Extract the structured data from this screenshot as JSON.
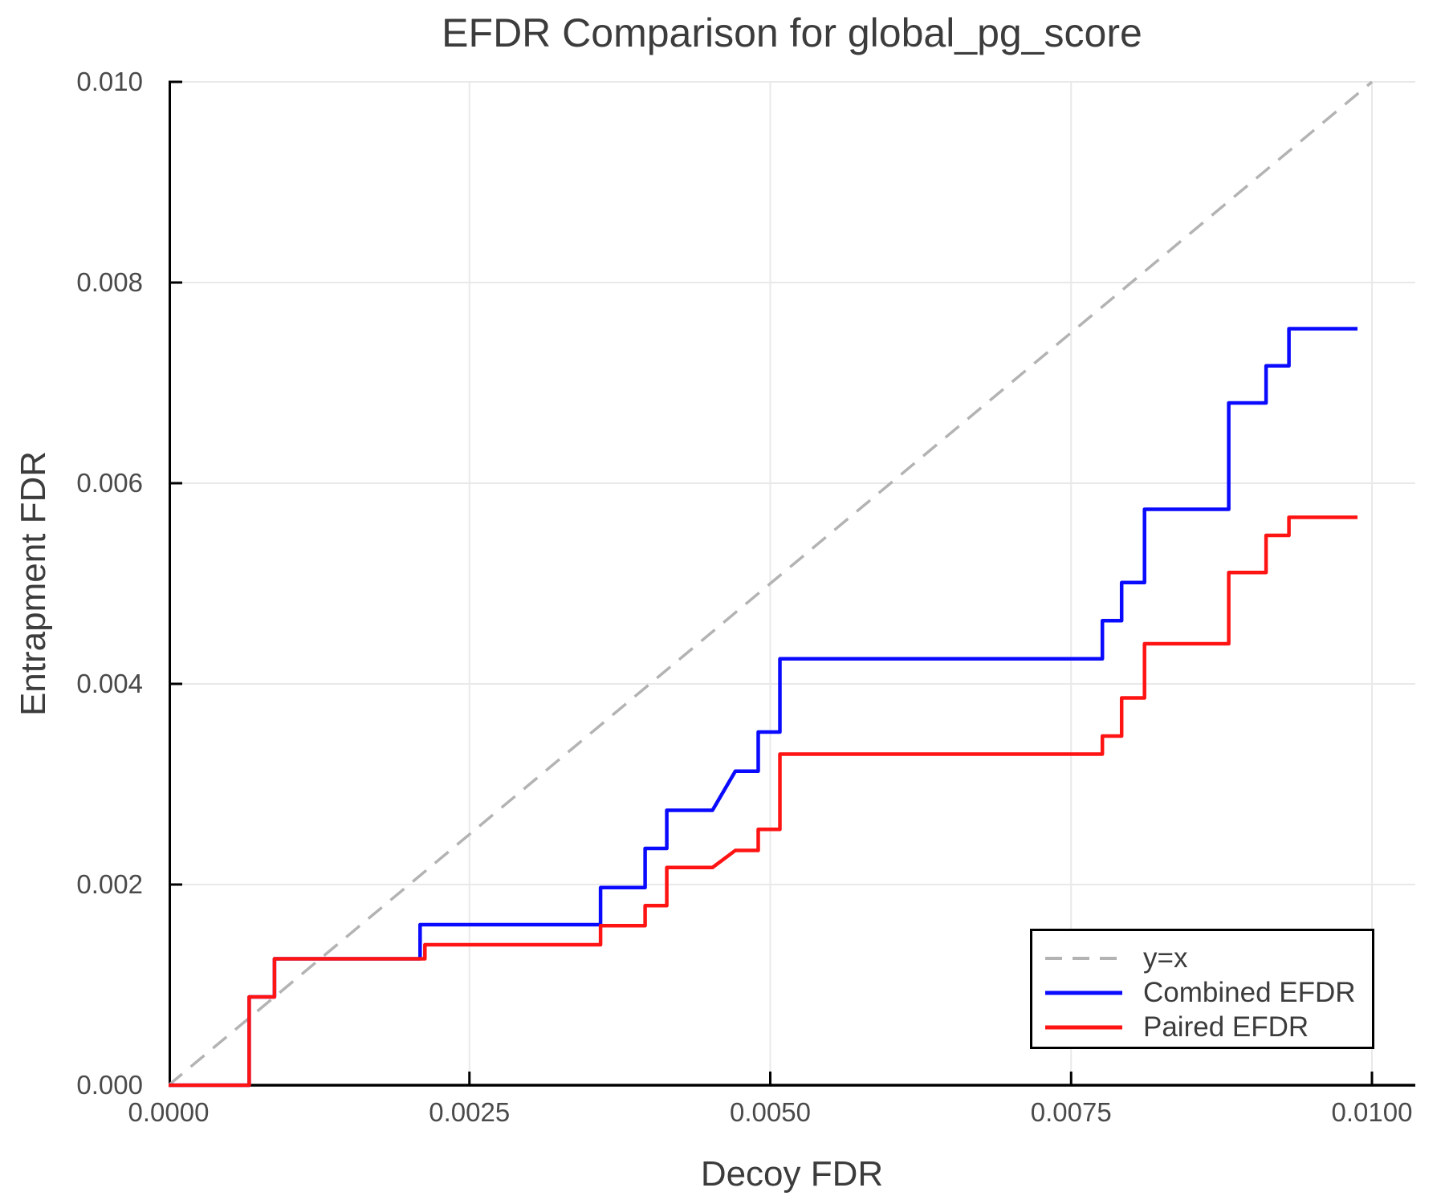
{
  "chart": {
    "title": "EFDR Comparison for global_pg_score",
    "xlabel": "Decoy FDR",
    "ylabel": "Entrapment FDR"
  },
  "colors": {
    "combined": "#0a0aff",
    "paired": "#ff1414",
    "identity": "#b3b3b3",
    "grid": "#e9e9e9",
    "axis": "#000000",
    "text": "#3c3c3c"
  },
  "chart_data": {
    "type": "line",
    "line_style": "step",
    "title": "EFDR Comparison for global_pg_score",
    "xlabel": "Decoy FDR",
    "ylabel": "Entrapment FDR",
    "xlim": [
      0,
      0.01036
    ],
    "ylim": [
      0,
      0.01
    ],
    "grid": true,
    "legend_position": "lower right",
    "x_ticks": [
      {
        "value": 0.0,
        "label": "0.0000"
      },
      {
        "value": 0.0025,
        "label": "0.0025"
      },
      {
        "value": 0.005,
        "label": "0.0050"
      },
      {
        "value": 0.0075,
        "label": "0.0075"
      },
      {
        "value": 0.01,
        "label": "0.0100"
      }
    ],
    "y_ticks": [
      {
        "value": 0.0,
        "label": "0.000"
      },
      {
        "value": 0.002,
        "label": "0.002"
      },
      {
        "value": 0.004,
        "label": "0.004"
      },
      {
        "value": 0.006,
        "label": "0.006"
      },
      {
        "value": 0.008,
        "label": "0.008"
      },
      {
        "value": 0.01,
        "label": "0.010"
      }
    ],
    "reference_line": {
      "name": "y=x",
      "color": "#b3b3b3",
      "dashed": true,
      "points": [
        [
          0,
          0
        ],
        [
          0.01,
          0.01
        ]
      ]
    },
    "series": [
      {
        "id": "combined-efdr",
        "name": "Combined EFDR",
        "color": "#0a0aff",
        "points": [
          [
            0,
            0
          ],
          [
            0.00067,
            0
          ],
          [
            0.00067,
            0.00088
          ],
          [
            0.00088,
            0.00088
          ],
          [
            0.00088,
            0.00126
          ],
          [
            0.00209,
            0.00126
          ],
          [
            0.00209,
            0.0016
          ],
          [
            0.00359,
            0.0016
          ],
          [
            0.00359,
            0.00197
          ],
          [
            0.00396,
            0.00197
          ],
          [
            0.00396,
            0.00236
          ],
          [
            0.00414,
            0.00236
          ],
          [
            0.00414,
            0.00274
          ],
          [
            0.00452,
            0.00274
          ],
          [
            0.00471,
            0.00313
          ],
          [
            0.0049,
            0.00313
          ],
          [
            0.0049,
            0.00352
          ],
          [
            0.00508,
            0.00352
          ],
          [
            0.00508,
            0.00425
          ],
          [
            0.00776,
            0.00425
          ],
          [
            0.00776,
            0.00463
          ],
          [
            0.00792,
            0.00463
          ],
          [
            0.00792,
            0.00501
          ],
          [
            0.00811,
            0.00501
          ],
          [
            0.00811,
            0.00574
          ],
          [
            0.00881,
            0.00574
          ],
          [
            0.00881,
            0.0068
          ],
          [
            0.00912,
            0.0068
          ],
          [
            0.00912,
            0.00717
          ],
          [
            0.00931,
            0.00717
          ],
          [
            0.00931,
            0.00754
          ],
          [
            0.00988,
            0.00754
          ]
        ]
      },
      {
        "id": "paired-efdr",
        "name": "Paired EFDR",
        "color": "#ff1414",
        "points": [
          [
            0,
            0
          ],
          [
            0.00067,
            0
          ],
          [
            0.00067,
            0.00088
          ],
          [
            0.00088,
            0.00088
          ],
          [
            0.00088,
            0.00126
          ],
          [
            0.00213,
            0.00126
          ],
          [
            0.00213,
            0.0014
          ],
          [
            0.00359,
            0.0014
          ],
          [
            0.00359,
            0.00159
          ],
          [
            0.00396,
            0.00159
          ],
          [
            0.00396,
            0.00179
          ],
          [
            0.00414,
            0.00179
          ],
          [
            0.00414,
            0.00217
          ],
          [
            0.00452,
            0.00217
          ],
          [
            0.00471,
            0.00234
          ],
          [
            0.0049,
            0.00234
          ],
          [
            0.0049,
            0.00255
          ],
          [
            0.00508,
            0.00255
          ],
          [
            0.00508,
            0.0033
          ],
          [
            0.00776,
            0.0033
          ],
          [
            0.00776,
            0.00348
          ],
          [
            0.00792,
            0.00348
          ],
          [
            0.00792,
            0.00386
          ],
          [
            0.00811,
            0.00386
          ],
          [
            0.00811,
            0.0044
          ],
          [
            0.00881,
            0.0044
          ],
          [
            0.00881,
            0.00511
          ],
          [
            0.00912,
            0.00511
          ],
          [
            0.00912,
            0.00548
          ],
          [
            0.00931,
            0.00548
          ],
          [
            0.00931,
            0.00566
          ],
          [
            0.00988,
            0.00566
          ]
        ]
      }
    ]
  }
}
